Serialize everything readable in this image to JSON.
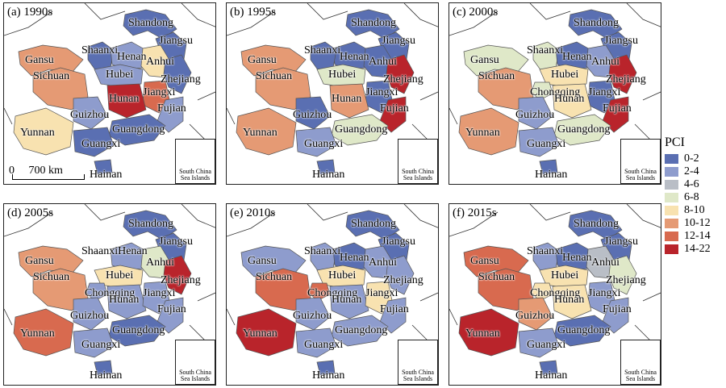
{
  "legend": {
    "title": "PCI",
    "classes": [
      {
        "label": "0-2",
        "color": "#5a6fb2"
      },
      {
        "label": "2-4",
        "color": "#8e9ccd"
      },
      {
        "label": "4-6",
        "color": "#b9bec6"
      },
      {
        "label": "6-8",
        "color": "#dfe8c8"
      },
      {
        "label": "8-10",
        "color": "#f8e2b0"
      },
      {
        "label": "10-12",
        "color": "#e59a74"
      },
      {
        "label": "12-14",
        "color": "#d86a4f"
      },
      {
        "label": "14-22",
        "color": "#b9242b"
      }
    ]
  },
  "scale_bar": {
    "zero": "0",
    "distance": "700 km"
  },
  "inset_label": "South China Sea Islands",
  "panels": [
    {
      "title": "(a) 1990s",
      "labels": [
        "Shandong",
        "Jiangsu",
        "Shaanxi",
        "Henan",
        "Anhui",
        "Gansu",
        "Sichuan",
        "Hubei",
        "Zhejiang",
        "Jiangxi",
        "Hunan",
        "Guizhou",
        "Fujian",
        "Guangdong",
        "Guangxi",
        "Yunnan",
        "Hainan"
      ]
    },
    {
      "title": "(b) 1995s",
      "labels": [
        "Shandong",
        "Jiangsu",
        "Gansu",
        "Henan",
        "Shaanxi",
        "Anhui",
        "Sichuan",
        "Zhejiang",
        "Hubei",
        "Jiangxi",
        "Hunan",
        "Guizhou",
        "Fujian",
        "Guangdong",
        "Yunnan",
        "Guangxi",
        "Hainan"
      ]
    },
    {
      "title": "(c) 2000s",
      "labels": [
        "Shandong",
        "Shaanxi",
        "Jiangsu",
        "Gansu",
        "Henan",
        "Anhui",
        "Sichuan",
        "Hubei",
        "Chongqing",
        "Zhejiang",
        "Jiangxi",
        "Hunan",
        "Guizhou",
        "Fujian",
        "Guangdong",
        "Yunnan",
        "Guangxi",
        "Hainan"
      ]
    },
    {
      "title": "(d) 2005s",
      "labels": [
        "Shandong",
        "Jiangsu",
        "ShaanxiHenan",
        "Gansu",
        "Hubei",
        "Anhui",
        "Sichuan",
        "Chongqing",
        "Zhejiang",
        "Hunan",
        "Jiangxi",
        "Guizhou",
        "Fujian",
        "Guangdong",
        "Yunnan",
        "Guangxi",
        "Hainan"
      ]
    },
    {
      "title": "(e) 2010s",
      "labels": [
        "Shandong",
        "Shaanxi",
        "Jiangsu",
        "Gansu",
        "Henan",
        "Anhui",
        "Sichuan",
        "Hubei",
        "Zhejiang",
        "Chongqing",
        "Hunan",
        "Jiangxi",
        "Guizhou",
        "Fujian",
        "Guangdong",
        "Yunnan",
        "Guangxi",
        "Hainan"
      ]
    },
    {
      "title": "(f) 2015s",
      "labels": [
        "Shandong",
        "Gansu",
        "Shaanxi",
        "Henan",
        "Jiangsu",
        "Anhui",
        "Sichuan",
        "Hubei",
        "Chongqing",
        "Jiangxi",
        "Zhejiang",
        "Guizhou",
        "Hunan",
        "Fujian",
        "Yunnan",
        "Guangdong",
        "Guangxi",
        "Hainan"
      ]
    }
  ]
}
